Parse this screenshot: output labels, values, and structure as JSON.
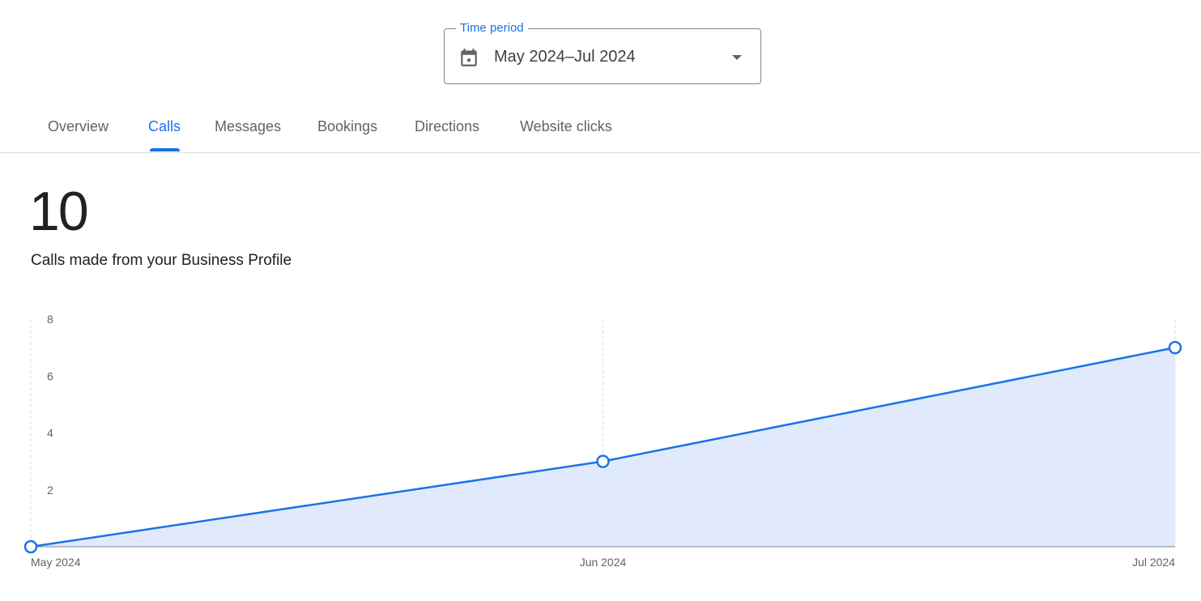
{
  "time_period": {
    "label": "Time period",
    "value": "May 2024–Jul 2024",
    "icon": "calendar-icon"
  },
  "tabs": [
    {
      "label": "Overview",
      "active": false
    },
    {
      "label": "Calls",
      "active": true
    },
    {
      "label": "Messages",
      "active": false
    },
    {
      "label": "Bookings",
      "active": false
    },
    {
      "label": "Directions",
      "active": false
    },
    {
      "label": "Website clicks",
      "active": false
    }
  ],
  "summary": {
    "total": "10",
    "description": "Calls made from your Business Profile"
  },
  "colors": {
    "accent": "#1a73e8",
    "fill": "#e1eafc"
  },
  "chart_data": {
    "type": "area",
    "categories": [
      "May 2024",
      "Jun 2024",
      "Jul 2024"
    ],
    "values": [
      0,
      3,
      7
    ],
    "ylim": [
      0,
      8
    ],
    "yticks": [
      2,
      4,
      6,
      8
    ],
    "grid": "vertical dashed at categories",
    "xlabel": "",
    "ylabel": ""
  }
}
